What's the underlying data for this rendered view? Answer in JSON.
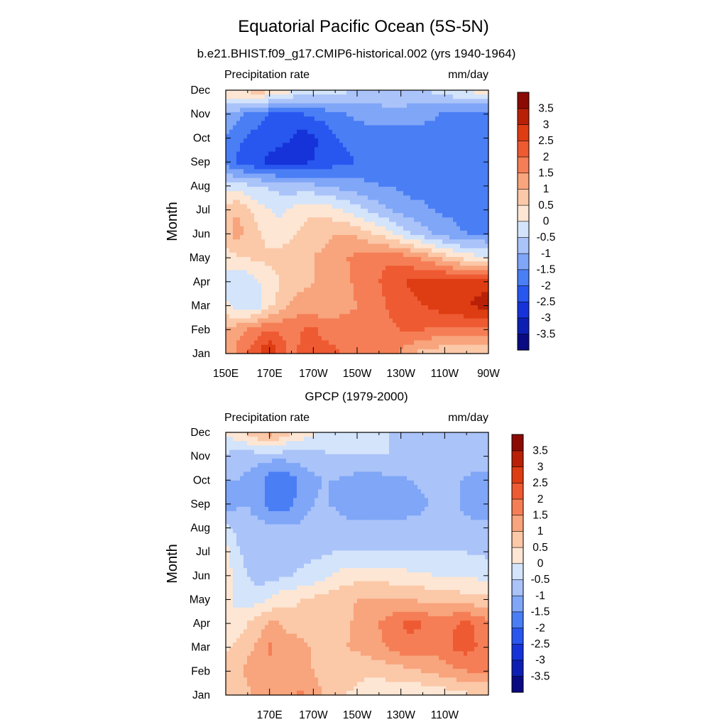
{
  "figure": {
    "title": "Equatorial Pacific Ocean (5S-5N)"
  },
  "colors": {
    "levels_palette": [
      "#0a0a82",
      "#0d1fb2",
      "#1633d9",
      "#2857f0",
      "#4a7ef5",
      "#7fa6f7",
      "#aac3f9",
      "#d3e4fb",
      "#fde6d3",
      "#fbc8a8",
      "#f8a47c",
      "#f57e56",
      "#ee5a32",
      "#de3c12",
      "#b82107",
      "#8c0a04"
    ]
  },
  "chart_data": [
    {
      "type": "heatmap",
      "subtitle": "b.e21.BHIST.f09_g17.CMIP6-historical.002 (yrs 1940-1964)",
      "left_label": "Precipitation rate",
      "right_label": "mm/day",
      "ylabel": "Month",
      "xlim": [
        150,
        270
      ],
      "x_unit": "degrees east",
      "x_ticks": [
        150,
        170,
        190,
        210,
        230,
        250,
        270
      ],
      "x_tick_labels": [
        "150E",
        "170E",
        "170W",
        "150W",
        "130W",
        "110W",
        "90W"
      ],
      "months": [
        "Jan",
        "Feb",
        "Mar",
        "Apr",
        "May",
        "Jun",
        "Jul",
        "Aug",
        "Sep",
        "Oct",
        "Nov",
        "Dec"
      ],
      "colorbar_levels": [
        -4,
        -3.5,
        -3,
        -2.5,
        -2,
        -1.5,
        -1,
        -0.5,
        0,
        0.5,
        1,
        1.5,
        2,
        2.5,
        3,
        3.5,
        4
      ],
      "colorbar_labels": [
        "3.5",
        "3",
        "2.5",
        "2",
        "1.5",
        "1",
        "0.5",
        "0",
        "-0.5",
        "-1",
        "-1.5",
        "-2",
        "-2.5",
        "-3",
        "-3.5"
      ],
      "grid_lon": [
        150,
        155,
        160,
        165,
        170,
        175,
        180,
        185,
        190,
        195,
        200,
        205,
        210,
        215,
        220,
        225,
        230,
        235,
        240,
        245,
        250,
        255,
        260,
        265,
        270
      ],
      "anomaly_mm_per_day": [
        [
          1.0,
          1.6,
          2.0,
          2.5,
          3.1,
          2.3,
          1.7,
          2.2,
          2.2,
          2.3,
          2.1,
          1.9,
          1.8,
          1.8,
          1.9,
          1.6,
          1.4,
          1.0,
          0.8,
          0.7,
          0.6,
          0.6,
          0.5,
          0.5,
          0.6
        ],
        [
          1.0,
          1.3,
          1.5,
          1.8,
          2.0,
          1.9,
          1.9,
          2.0,
          2.1,
          1.8,
          1.7,
          1.7,
          1.6,
          1.7,
          1.8,
          1.9,
          2.0,
          2.1,
          2.0,
          1.9,
          1.9,
          1.9,
          1.9,
          1.9,
          1.9
        ],
        [
          0.2,
          -0.3,
          -0.4,
          -0.2,
          0.4,
          0.7,
          1.1,
          1.2,
          1.1,
          1.2,
          1.3,
          1.4,
          1.5,
          1.6,
          1.8,
          2.1,
          2.3,
          2.4,
          2.5,
          2.6,
          2.8,
          2.9,
          3.0,
          3.1,
          3.3
        ],
        [
          -0.3,
          -0.4,
          -0.3,
          0.0,
          0.3,
          0.5,
          0.7,
          0.9,
          1.0,
          1.1,
          1.2,
          1.4,
          1.6,
          1.8,
          2.0,
          2.2,
          2.4,
          2.6,
          2.7,
          2.8,
          2.8,
          2.8,
          2.8,
          2.8,
          2.8
        ],
        [
          0.3,
          0.4,
          0.5,
          0.6,
          0.6,
          0.7,
          0.8,
          0.9,
          1.0,
          1.1,
          1.3,
          1.5,
          1.6,
          1.8,
          1.9,
          1.9,
          1.8,
          1.6,
          1.4,
          1.1,
          0.8,
          0.5,
          0.3,
          0.2,
          0.1
        ],
        [
          0.8,
          1.2,
          0.9,
          0.6,
          0.3,
          0.2,
          0.4,
          0.6,
          0.8,
          0.9,
          1.0,
          1.0,
          0.9,
          0.6,
          0.4,
          0.1,
          -0.2,
          -0.5,
          -0.8,
          -1.0,
          -1.2,
          -1.4,
          -1.5,
          -1.5,
          -1.6
        ],
        [
          0.7,
          1.0,
          0.6,
          0.2,
          0.0,
          -0.1,
          0.1,
          0.3,
          0.4,
          0.3,
          0.1,
          -0.1,
          -0.3,
          -0.6,
          -0.8,
          -1.0,
          -1.2,
          -1.3,
          -1.4,
          -1.5,
          -1.6,
          -1.6,
          -1.7,
          -1.7,
          -1.7
        ],
        [
          -0.3,
          -0.3,
          -0.4,
          -0.5,
          -0.6,
          -0.7,
          -0.8,
          -0.8,
          -0.9,
          -1.0,
          -1.1,
          -1.2,
          -1.3,
          -1.4,
          -1.5,
          -1.5,
          -1.6,
          -1.7,
          -1.7,
          -1.8,
          -1.8,
          -1.8,
          -1.8,
          -1.8,
          -1.8
        ],
        [
          -1.6,
          -2.1,
          -2.3,
          -2.5,
          -2.6,
          -2.7,
          -2.6,
          -2.6,
          -2.5,
          -2.4,
          -2.2,
          -2.1,
          -2.0,
          -1.9,
          -1.8,
          -1.8,
          -1.8,
          -1.8,
          -1.8,
          -1.8,
          -1.8,
          -1.8,
          -1.8,
          -1.8,
          -1.8
        ],
        [
          -1.5,
          -1.8,
          -2.1,
          -2.2,
          -2.3,
          -2.4,
          -2.5,
          -2.8,
          -2.6,
          -2.3,
          -2.0,
          -1.9,
          -1.8,
          -1.8,
          -1.8,
          -1.8,
          -1.8,
          -1.8,
          -1.8,
          -1.8,
          -1.8,
          -1.8,
          -1.8,
          -1.8,
          -1.8
        ],
        [
          -1.1,
          -1.3,
          -1.6,
          -1.8,
          -2.0,
          -2.0,
          -2.0,
          -2.0,
          -1.9,
          -1.8,
          -1.6,
          -1.5,
          -1.4,
          -1.3,
          -1.3,
          -1.2,
          -1.2,
          -1.2,
          -1.3,
          -1.4,
          -1.6,
          -1.7,
          -1.8,
          -1.8,
          -1.8
        ],
        [
          0.5,
          0.6,
          0.7,
          0.8,
          0.7,
          0.5,
          0.1,
          -0.1,
          -0.2,
          -0.3,
          -0.3,
          -0.4,
          -0.5,
          -0.5,
          -0.5,
          -0.5,
          -0.6,
          -0.7,
          -0.6,
          -0.4,
          -0.2,
          0.0,
          0.1,
          0.2,
          0.3
        ]
      ]
    },
    {
      "type": "heatmap",
      "subtitle": "GPCP (1979-2000)",
      "left_label": "Precipitation rate",
      "right_label": "mm/day",
      "ylabel": "Month",
      "xlim": [
        150,
        270
      ],
      "x_unit": "degrees east",
      "x_ticks": [
        170,
        190,
        210,
        230,
        250
      ],
      "x_tick_labels": [
        "170E",
        "170W",
        "150W",
        "130W",
        "110W"
      ],
      "months": [
        "Jan",
        "Feb",
        "Mar",
        "Apr",
        "May",
        "Jun",
        "Jul",
        "Aug",
        "Sep",
        "Oct",
        "Nov",
        "Dec"
      ],
      "colorbar_levels": [
        -4,
        -3.5,
        -3,
        -2.5,
        -2,
        -1.5,
        -1,
        -0.5,
        0,
        0.5,
        1,
        1.5,
        2,
        2.5,
        3,
        3.5,
        4
      ],
      "colorbar_labels": [
        "3.5",
        "3",
        "2.5",
        "2",
        "1.5",
        "1",
        "0.5",
        "0",
        "-0.5",
        "-1",
        "-1.5",
        "-2",
        "-2.5",
        "-3",
        "-3.5"
      ],
      "grid_lon": [
        150,
        155,
        160,
        165,
        170,
        175,
        180,
        185,
        190,
        195,
        200,
        205,
        210,
        215,
        220,
        225,
        230,
        235,
        240,
        245,
        250,
        255,
        260,
        265,
        270
      ],
      "anomaly_mm_per_day": [
        [
          0.6,
          0.7,
          0.9,
          1.1,
          1.2,
          1.3,
          1.5,
          1.6,
          1.3,
          0.9,
          0.6,
          0.5,
          0.4,
          0.3,
          0.2,
          0.2,
          0.1,
          0.1,
          0.1,
          0.1,
          0.2,
          0.3,
          0.4,
          0.4,
          0.5
        ],
        [
          0.8,
          0.9,
          1.1,
          1.2,
          1.4,
          1.2,
          1.1,
          1.2,
          1.0,
          0.8,
          0.7,
          0.7,
          0.6,
          0.6,
          0.6,
          0.7,
          0.8,
          0.9,
          1.0,
          1.1,
          1.3,
          1.4,
          1.5,
          1.5,
          1.5
        ],
        [
          0.4,
          0.6,
          0.9,
          1.1,
          1.6,
          1.1,
          1.4,
          1.2,
          0.9,
          0.9,
          0.9,
          1.0,
          1.1,
          1.3,
          1.4,
          1.6,
          1.8,
          1.9,
          1.8,
          1.7,
          1.8,
          2.1,
          2.2,
          2.0,
          1.8
        ],
        [
          0.1,
          0.2,
          0.5,
          0.8,
          1.1,
          1.0,
          0.7,
          0.6,
          0.7,
          0.7,
          0.8,
          0.9,
          1.1,
          1.3,
          1.5,
          1.7,
          2.0,
          2.1,
          2.0,
          1.8,
          1.8,
          2.0,
          2.1,
          1.9,
          1.6
        ],
        [
          0.1,
          -0.1,
          -0.3,
          -0.2,
          0.0,
          0.3,
          0.4,
          0.5,
          0.6,
          0.7,
          0.8,
          0.9,
          1.0,
          1.0,
          1.1,
          1.1,
          1.0,
          1.0,
          0.9,
          0.9,
          0.8,
          0.8,
          0.7,
          0.7,
          0.7
        ],
        [
          0.3,
          -0.2,
          -0.5,
          -0.7,
          -0.7,
          -0.6,
          -0.5,
          -0.4,
          -0.3,
          -0.1,
          0.1,
          0.2,
          0.3,
          0.3,
          0.3,
          0.2,
          0.2,
          0.1,
          0.1,
          0.0,
          0.0,
          0.0,
          -0.1,
          -0.1,
          -0.2
        ],
        [
          0.2,
          -0.4,
          -0.7,
          -0.8,
          -0.8,
          -0.7,
          -0.7,
          -0.7,
          -0.6,
          -0.6,
          -0.5,
          -0.5,
          -0.5,
          -0.5,
          -0.5,
          -0.5,
          -0.5,
          -0.5,
          -0.5,
          -0.5,
          -0.5,
          -0.5,
          -0.5,
          -0.6,
          -0.6
        ],
        [
          -0.4,
          -0.6,
          -0.8,
          -0.8,
          -0.9,
          -0.9,
          -0.9,
          -0.9,
          -0.8,
          -0.7,
          -0.7,
          -0.8,
          -0.9,
          -0.9,
          -0.9,
          -0.9,
          -0.9,
          -0.8,
          -0.8,
          -0.7,
          -0.7,
          -0.7,
          -0.8,
          -0.9,
          -0.9
        ],
        [
          -1.4,
          -1.1,
          -1.0,
          -1.3,
          -1.7,
          -1.8,
          -1.6,
          -1.2,
          -1.0,
          -0.9,
          -1.1,
          -1.3,
          -1.3,
          -1.3,
          -1.3,
          -1.3,
          -1.2,
          -1.2,
          -1.1,
          -0.9,
          -0.8,
          -0.9,
          -1.2,
          -1.3,
          -1.3
        ],
        [
          -1.0,
          -1.0,
          -1.1,
          -1.3,
          -1.8,
          -2.0,
          -1.7,
          -1.3,
          -1.1,
          -1.0,
          -1.0,
          -1.1,
          -1.2,
          -1.3,
          -1.2,
          -1.1,
          -1.1,
          -1.0,
          -0.9,
          -0.8,
          -0.8,
          -0.9,
          -1.1,
          -1.2,
          -1.2
        ],
        [
          -0.6,
          -0.7,
          -0.8,
          -0.8,
          -0.8,
          -0.8,
          -0.8,
          -0.8,
          -0.7,
          -0.6,
          -0.5,
          -0.5,
          -0.5,
          -0.5,
          -0.5,
          -0.5,
          -0.5,
          -0.5,
          -0.5,
          -0.5,
          -0.5,
          -0.6,
          -0.6,
          -0.6,
          -0.6
        ],
        [
          0.1,
          0.3,
          0.7,
          1.0,
          1.2,
          1.0,
          0.5,
          0.3,
          0.1,
          -0.1,
          -0.2,
          -0.3,
          -0.3,
          -0.3,
          -0.4,
          -0.5,
          -0.6,
          -0.6,
          -0.6,
          -0.6,
          -0.6,
          -0.6,
          -0.6,
          -0.6,
          -0.6
        ]
      ]
    }
  ]
}
